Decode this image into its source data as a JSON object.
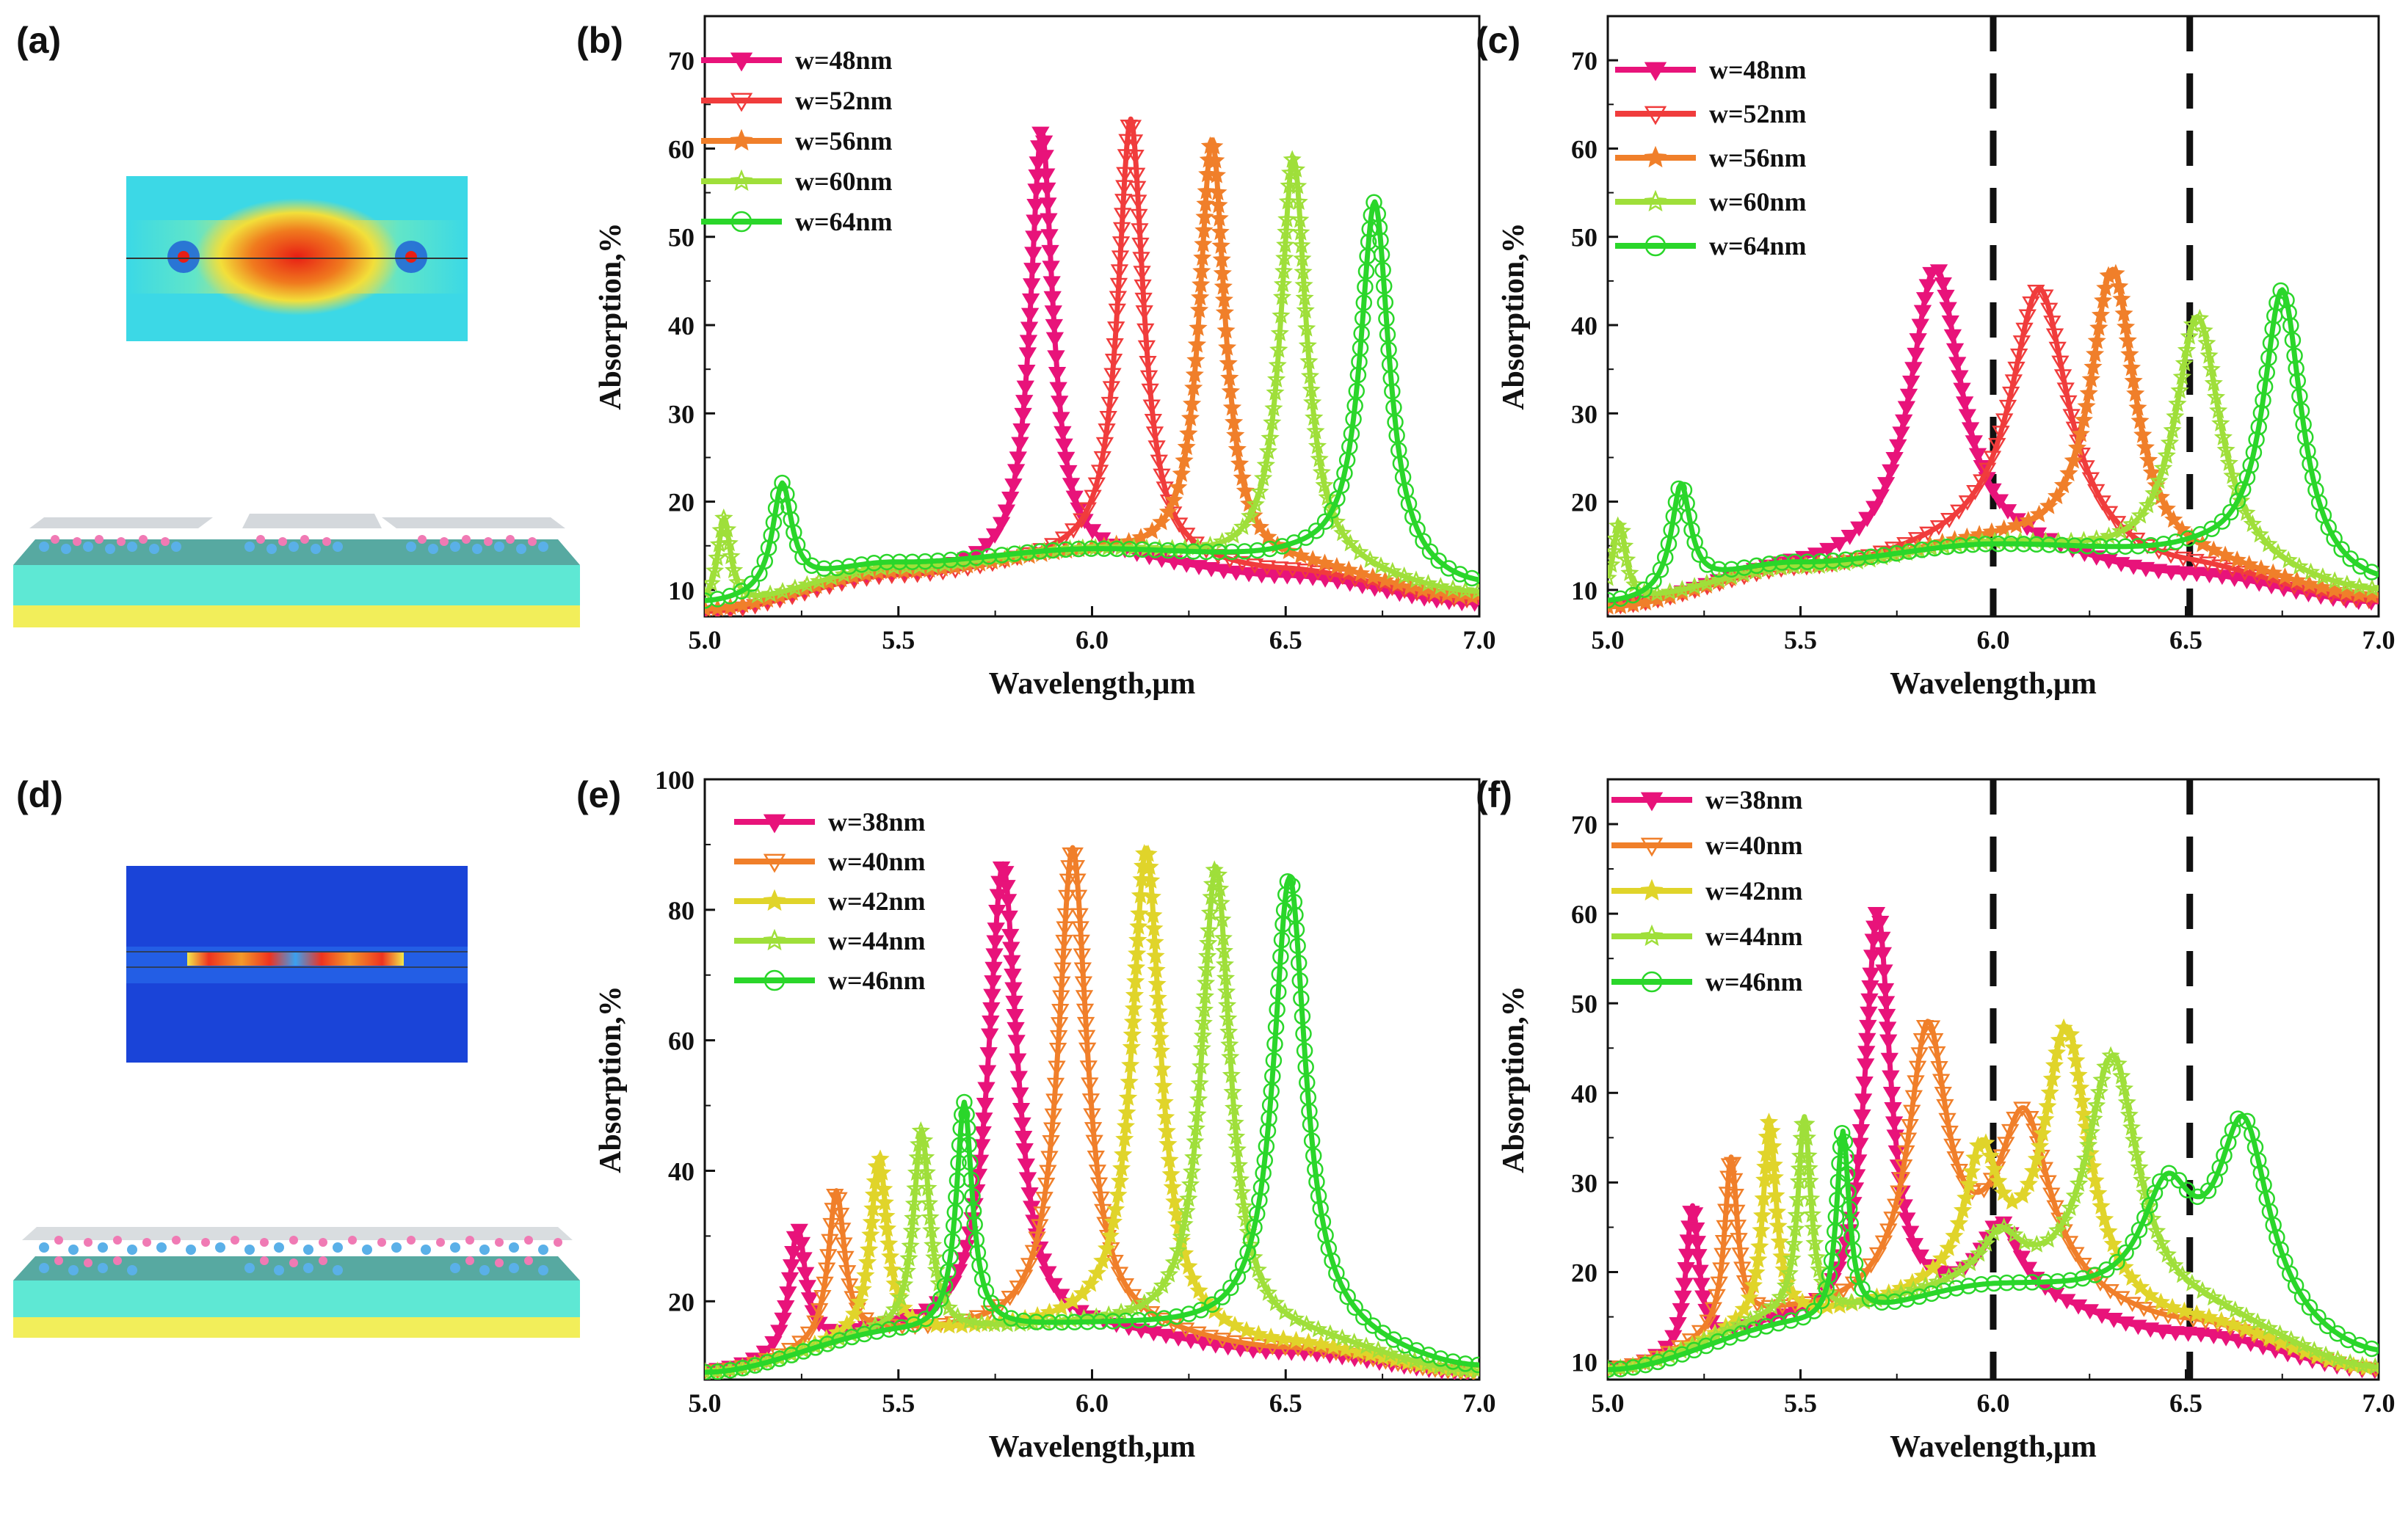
{
  "figure": {
    "panel_labels": [
      "(a)",
      "(b)",
      "(c)",
      "(d)",
      "(e)",
      "(f)"
    ]
  },
  "chart_data": [
    {
      "panel": "(b)",
      "type": "line",
      "xlabel": "Wavelength,μm",
      "ylabel": "Absorption,%",
      "xlim": [
        5.0,
        7.0
      ],
      "ylim": [
        7,
        75
      ],
      "xticks": [
        5.0,
        5.5,
        6.0,
        6.5,
        7.0
      ],
      "xtick_labels": [
        "5.0",
        "5.5",
        "6.0",
        "6.5",
        "7.0"
      ],
      "yticks": [
        10,
        20,
        30,
        40,
        50,
        60,
        70
      ],
      "ytick_labels": [
        "10",
        "20",
        "30",
        "40",
        "50",
        "60",
        "70"
      ],
      "legend_position": "top-left",
      "dashed_lines": [],
      "series": [
        {
          "name": "w=48nm",
          "color": "#e8137a",
          "marker": "tri-down-filled",
          "base": [
            [
              5.0,
              7.5
            ],
            [
              5.5,
              11.5
            ],
            [
              6.0,
              13.5
            ],
            [
              6.5,
              11.5
            ],
            [
              7.0,
              8.5
            ]
          ],
          "peaks": [
            [
              5.87,
              49,
              0.035
            ]
          ]
        },
        {
          "name": "w=52nm",
          "color": "#f03c3c",
          "marker": "tri-down-open",
          "base": [
            [
              5.0,
              7.5
            ],
            [
              5.5,
              11.5
            ],
            [
              6.0,
              13.5
            ],
            [
              6.5,
              12.0
            ],
            [
              7.0,
              8.8
            ]
          ],
          "peaks": [
            [
              6.1,
              50,
              0.04
            ]
          ]
        },
        {
          "name": "w=56nm",
          "color": "#f07f2a",
          "marker": "star-filled",
          "base": [
            [
              5.0,
              7.8
            ],
            [
              5.5,
              12.0
            ],
            [
              6.0,
              14.0
            ],
            [
              6.5,
              12.5
            ],
            [
              7.0,
              9.0
            ]
          ],
          "peaks": [
            [
              6.31,
              48,
              0.04
            ]
          ]
        },
        {
          "name": "w=60nm",
          "color": "#9fdf3a",
          "marker": "star-open",
          "base": [
            [
              5.0,
              8.0
            ],
            [
              5.5,
              12.5
            ],
            [
              6.0,
              14.5
            ],
            [
              6.5,
              13.0
            ],
            [
              7.0,
              9.5
            ]
          ],
          "peaks": [
            [
              6.52,
              46,
              0.04
            ],
            [
              5.05,
              10,
              0.02
            ]
          ]
        },
        {
          "name": "w=64nm",
          "color": "#2ad62a",
          "marker": "circle-open",
          "base": [
            [
              5.0,
              8.5
            ],
            [
              5.5,
              13.0
            ],
            [
              6.0,
              14.5
            ],
            [
              6.5,
              13.5
            ],
            [
              7.0,
              10.0
            ]
          ],
          "peaks": [
            [
              6.73,
              42,
              0.045
            ],
            [
              5.2,
              12,
              0.03
            ]
          ]
        }
      ]
    },
    {
      "panel": "(c)",
      "type": "line",
      "xlabel": "Wavelength,μm",
      "ylabel": "Absorption,%",
      "xlim": [
        5.0,
        7.0
      ],
      "ylim": [
        7,
        75
      ],
      "xticks": [
        5.0,
        5.5,
        6.0,
        6.5,
        7.0
      ],
      "xtick_labels": [
        "5.0",
        "5.5",
        "6.0",
        "6.5",
        "7.0"
      ],
      "yticks": [
        10,
        20,
        30,
        40,
        50,
        60,
        70
      ],
      "ytick_labels": [
        "10",
        "20",
        "30",
        "40",
        "50",
        "60",
        "70"
      ],
      "legend_position": "top-left",
      "dashed_lines": [
        6.0,
        6.51
      ],
      "series": [
        {
          "name": "w=48nm",
          "color": "#e8137a",
          "marker": "tri-down-filled",
          "base": [
            [
              5.0,
              8.0
            ],
            [
              5.5,
              12.0
            ],
            [
              6.0,
              14.0
            ],
            [
              6.5,
              11.5
            ],
            [
              7.0,
              8.5
            ]
          ],
          "peaks": [
            [
              5.85,
              33,
              0.08
            ]
          ]
        },
        {
          "name": "w=52nm",
          "color": "#f03c3c",
          "marker": "tri-down-open",
          "base": [
            [
              5.0,
              8.0
            ],
            [
              5.5,
              12.0
            ],
            [
              6.0,
              14.5
            ],
            [
              6.5,
              12.0
            ],
            [
              7.0,
              8.5
            ]
          ],
          "peaks": [
            [
              6.12,
              30,
              0.09
            ]
          ]
        },
        {
          "name": "w=56nm",
          "color": "#f07f2a",
          "marker": "star-filled",
          "base": [
            [
              5.0,
              8.0
            ],
            [
              5.5,
              12.5
            ],
            [
              6.0,
              15.0
            ],
            [
              6.5,
              12.5
            ],
            [
              7.0,
              9.0
            ]
          ],
          "peaks": [
            [
              6.31,
              33,
              0.07
            ]
          ]
        },
        {
          "name": "w=60nm",
          "color": "#9fdf3a",
          "marker": "star-open",
          "base": [
            [
              5.0,
              8.5
            ],
            [
              5.5,
              12.5
            ],
            [
              6.0,
              15.0
            ],
            [
              6.5,
              13.0
            ],
            [
              7.0,
              9.5
            ]
          ],
          "peaks": [
            [
              6.53,
              28,
              0.07
            ],
            [
              5.03,
              9,
              0.02
            ]
          ]
        },
        {
          "name": "w=64nm",
          "color": "#2ad62a",
          "marker": "circle-open",
          "base": [
            [
              5.0,
              8.5
            ],
            [
              5.5,
              13.0
            ],
            [
              6.0,
              15.0
            ],
            [
              6.5,
              14.0
            ],
            [
              7.0,
              10.0
            ]
          ],
          "peaks": [
            [
              6.75,
              32,
              0.06
            ],
            [
              5.19,
              12,
              0.03
            ]
          ]
        }
      ]
    },
    {
      "panel": "(e)",
      "type": "line",
      "xlabel": "Wavelength,μm",
      "ylabel": "Absorption,%",
      "xlim": [
        5.0,
        7.0
      ],
      "ylim": [
        8,
        100
      ],
      "xticks": [
        5.0,
        5.5,
        6.0,
        6.5,
        7.0
      ],
      "xtick_labels": [
        "5.0",
        "5.5",
        "6.0",
        "6.5",
        "7.0"
      ],
      "yticks": [
        20,
        40,
        60,
        80,
        100
      ],
      "ytick_labels": [
        "20",
        "40",
        "60",
        "80",
        "100"
      ],
      "legend_position": "top-left",
      "dashed_lines": [],
      "series": [
        {
          "name": "w=38nm",
          "color": "#e8137a",
          "marker": "tri-down-filled",
          "base": [
            [
              5.0,
              9.0
            ],
            [
              5.5,
              15.0
            ],
            [
              6.0,
              15.0
            ],
            [
              6.5,
              12.0
            ],
            [
              7.0,
              9.0
            ]
          ],
          "peaks": [
            [
              5.77,
              72,
              0.045
            ],
            [
              5.24,
              19,
              0.025
            ]
          ]
        },
        {
          "name": "w=40nm",
          "color": "#f07f2a",
          "marker": "tri-down-open",
          "base": [
            [
              5.0,
              9.0
            ],
            [
              5.5,
              15.0
            ],
            [
              6.0,
              15.5
            ],
            [
              6.5,
              12.5
            ],
            [
              7.0,
              9.0
            ]
          ],
          "peaks": [
            [
              5.95,
              74,
              0.045
            ],
            [
              5.34,
              23,
              0.025
            ]
          ]
        },
        {
          "name": "w=42nm",
          "color": "#e0d42a",
          "marker": "star-filled",
          "base": [
            [
              5.0,
              9.0
            ],
            [
              5.5,
              15.0
            ],
            [
              6.0,
              16.0
            ],
            [
              6.5,
              13.0
            ],
            [
              7.0,
              9.0
            ]
          ],
          "peaks": [
            [
              6.14,
              74,
              0.045
            ],
            [
              5.45,
              27,
              0.025
            ]
          ]
        },
        {
          "name": "w=44nm",
          "color": "#9fdf3a",
          "marker": "star-open",
          "base": [
            [
              5.0,
              9.0
            ],
            [
              5.5,
              15.0
            ],
            [
              6.0,
              16.0
            ],
            [
              6.5,
              14.0
            ],
            [
              7.0,
              9.0
            ]
          ],
          "peaks": [
            [
              6.32,
              72,
              0.045
            ],
            [
              5.56,
              31,
              0.025
            ]
          ]
        },
        {
          "name": "w=46nm",
          "color": "#2ad62a",
          "marker": "circle-open",
          "base": [
            [
              5.0,
              9.0
            ],
            [
              5.5,
              15.0
            ],
            [
              6.0,
              16.0
            ],
            [
              6.5,
              15.0
            ],
            [
              7.0,
              9.5
            ]
          ],
          "peaks": [
            [
              6.51,
              70,
              0.05
            ],
            [
              5.67,
              35,
              0.025
            ]
          ]
        }
      ]
    },
    {
      "panel": "(f)",
      "type": "line",
      "xlabel": "Wavelength,μm",
      "ylabel": "Absorption,%",
      "xlim": [
        5.0,
        7.0
      ],
      "ylim": [
        8,
        75
      ],
      "xticks": [
        5.0,
        5.5,
        6.0,
        6.5,
        7.0
      ],
      "xtick_labels": [
        "5.0",
        "5.5",
        "6.0",
        "6.5",
        "7.0"
      ],
      "yticks": [
        10,
        20,
        30,
        40,
        50,
        60,
        70
      ],
      "ytick_labels": [
        "10",
        "20",
        "30",
        "40",
        "50",
        "60",
        "70"
      ],
      "legend_position": "top-left",
      "dashed_lines": [
        6.0,
        6.51
      ],
      "series": [
        {
          "name": "w=38nm",
          "color": "#e8137a",
          "marker": "tri-down-filled",
          "base": [
            [
              5.0,
              9.0
            ],
            [
              5.5,
              14.0
            ],
            [
              6.0,
              17.0
            ],
            [
              6.5,
              13.0
            ],
            [
              7.0,
              9.0
            ]
          ],
          "peaks": [
            [
              5.7,
              45,
              0.04
            ],
            [
              5.22,
              16,
              0.02
            ],
            [
              6.02,
              8,
              0.06
            ]
          ]
        },
        {
          "name": "w=40nm",
          "color": "#f07f2a",
          "marker": "tri-down-open",
          "base": [
            [
              5.0,
              9.0
            ],
            [
              5.5,
              15.0
            ],
            [
              6.0,
              18.0
            ],
            [
              6.5,
              14.0
            ],
            [
              7.0,
              9.0
            ]
          ],
          "peaks": [
            [
              5.83,
              29,
              0.06
            ],
            [
              5.32,
              19,
              0.02
            ],
            [
              6.08,
              19,
              0.08
            ]
          ]
        },
        {
          "name": "w=42nm",
          "color": "#e0d42a",
          "marker": "star-filled",
          "base": [
            [
              5.0,
              9.0
            ],
            [
              5.5,
              15.0
            ],
            [
              6.0,
              18.0
            ],
            [
              6.5,
              14.0
            ],
            [
              7.0,
              9.0
            ]
          ],
          "peaks": [
            [
              6.19,
              30,
              0.07
            ],
            [
              5.42,
              22,
              0.02
            ],
            [
              5.97,
              14,
              0.05
            ]
          ]
        },
        {
          "name": "w=44nm",
          "color": "#9fdf3a",
          "marker": "star-open",
          "base": [
            [
              5.0,
              9.0
            ],
            [
              5.5,
              15.0
            ],
            [
              6.0,
              18.0
            ],
            [
              6.5,
              15.0
            ],
            [
              7.0,
              9.0
            ]
          ],
          "peaks": [
            [
              6.31,
              28,
              0.08
            ],
            [
              5.51,
              22,
              0.02
            ],
            [
              6.02,
              5,
              0.06
            ]
          ]
        },
        {
          "name": "w=46nm",
          "color": "#2ad62a",
          "marker": "circle-open",
          "base": [
            [
              5.0,
              9.0
            ],
            [
              5.5,
              14.0
            ],
            [
              6.0,
              18.0
            ],
            [
              6.5,
              16.0
            ],
            [
              7.0,
              10.0
            ]
          ],
          "peaks": [
            [
              6.65,
              21,
              0.08
            ],
            [
              5.61,
              21,
              0.02
            ],
            [
              6.45,
              12,
              0.08
            ]
          ]
        }
      ]
    }
  ]
}
